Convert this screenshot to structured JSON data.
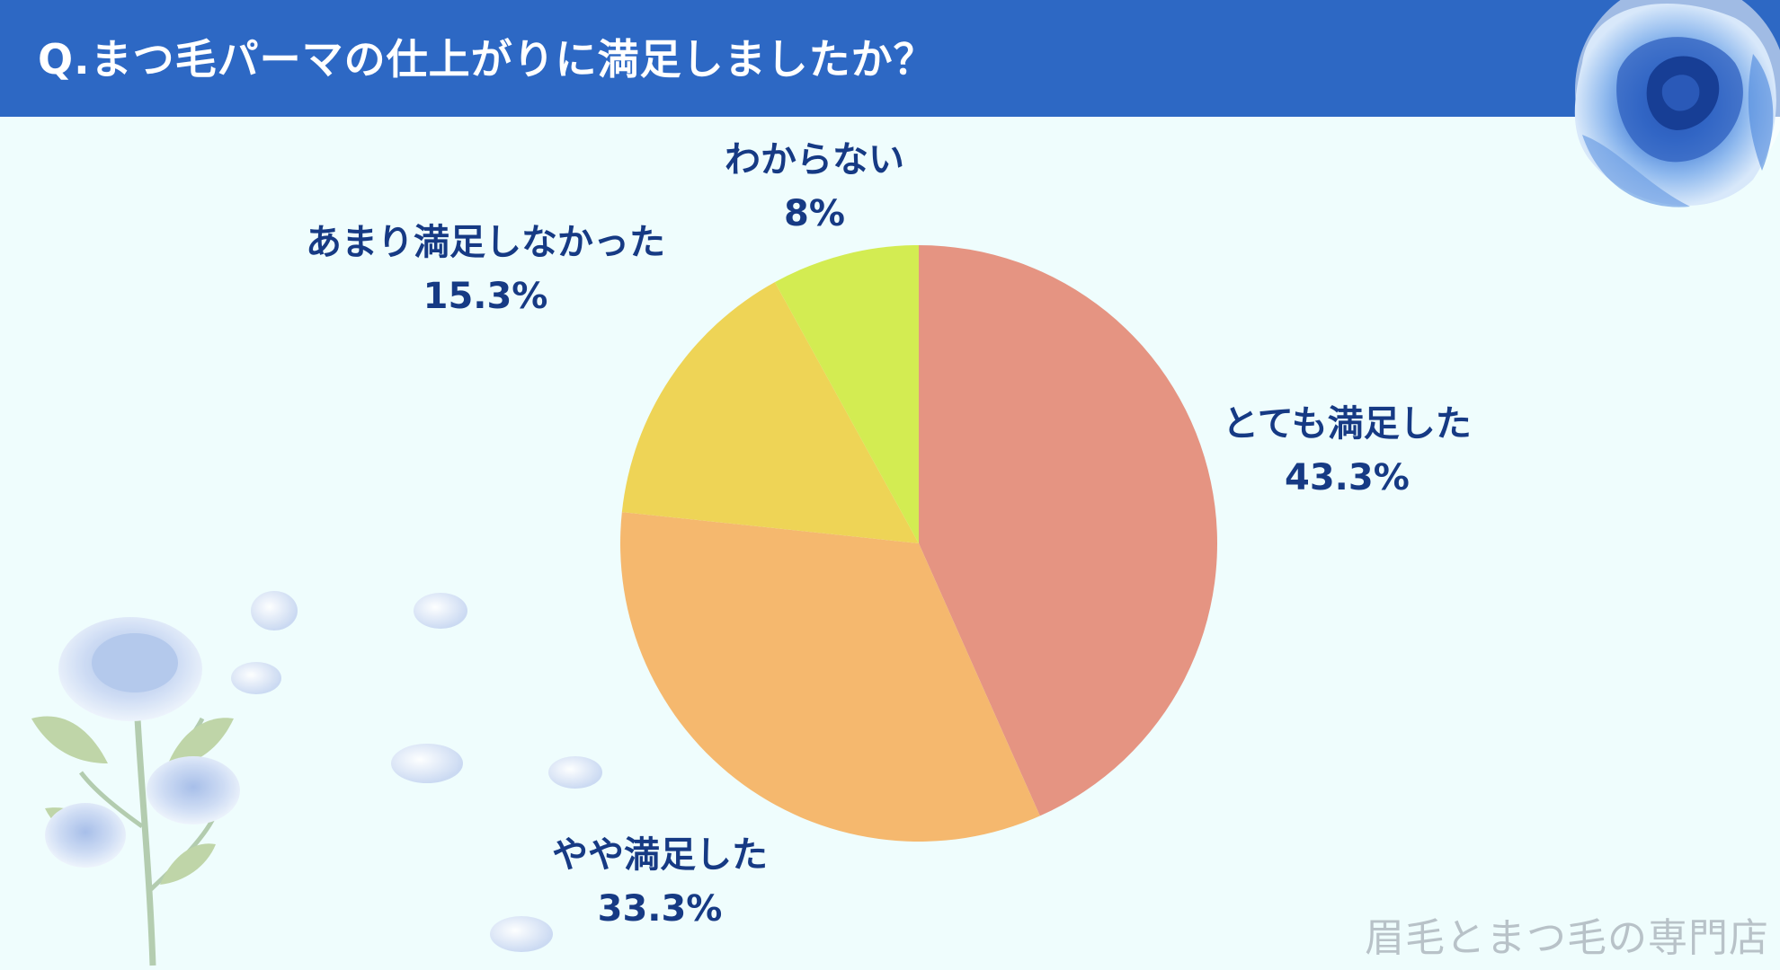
{
  "title": "Q.まつ毛パーマの仕上がりに満足しましたか？",
  "watermark": "眉毛とまつ毛の専門店",
  "chart_data": {
    "type": "pie",
    "title": "Q.まつ毛パーマの仕上がりに満足しましたか？",
    "categories": [
      "とても満足した",
      "やや満足した",
      "あまり満足しなかった",
      "わからない"
    ],
    "values": [
      43.3,
      33.3,
      15.3,
      8
    ],
    "value_labels": [
      "43.3%",
      "33.3%",
      "15.3%",
      "8%"
    ],
    "colors": [
      "#e59482",
      "#f5b86e",
      "#eed456",
      "#d3ec52"
    ],
    "start": "12 o'clock",
    "direction": "clockwise"
  }
}
